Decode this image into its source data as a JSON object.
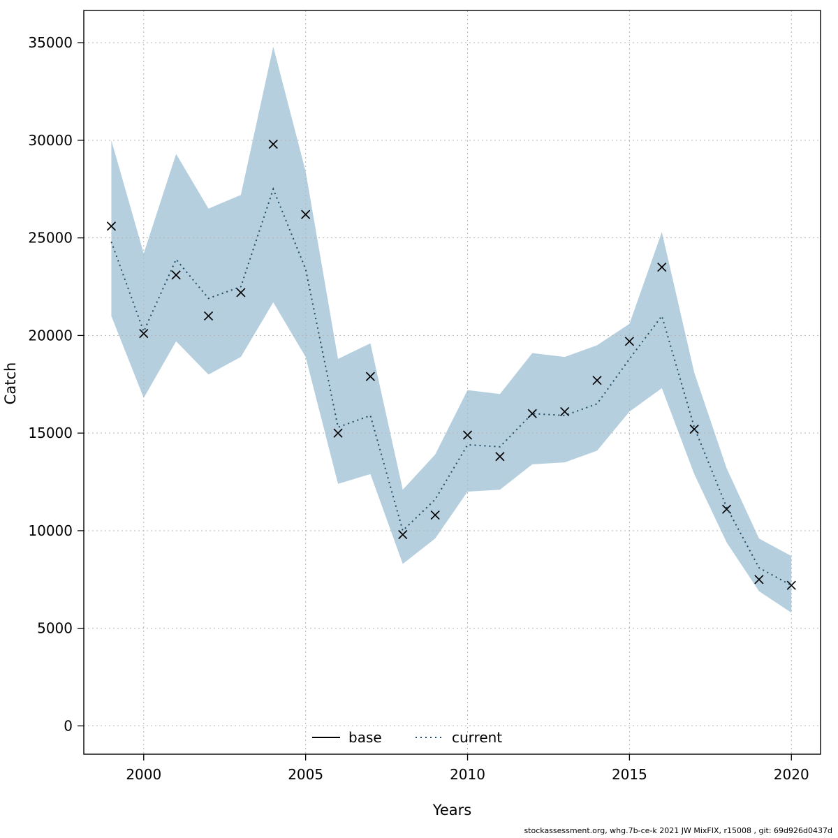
{
  "chart_data": {
    "type": "line",
    "title": "",
    "xlabel": "Years",
    "ylabel": "Catch",
    "xlim": [
      1998.15,
      2020.9
    ],
    "ylim": [
      -1450,
      36650
    ],
    "x_ticks": [
      2000,
      2005,
      2010,
      2015,
      2020
    ],
    "y_ticks": [
      0,
      5000,
      10000,
      15000,
      20000,
      25000,
      30000,
      35000
    ],
    "grid": true,
    "years": [
      1999,
      2000,
      2001,
      2002,
      2003,
      2004,
      2005,
      2006,
      2007,
      2008,
      2009,
      2010,
      2011,
      2012,
      2013,
      2014,
      2015,
      2016,
      2017,
      2018,
      2019,
      2020
    ],
    "series": [
      {
        "name": "catch-observations",
        "type": "points",
        "marker": "x",
        "color": "#000000",
        "values": [
          25600,
          20100,
          23100,
          21000,
          22200,
          29800,
          26200,
          15000,
          17900,
          9800,
          10800,
          14900,
          13800,
          16000,
          16100,
          17700,
          19700,
          23500,
          15200,
          11100,
          7500,
          7200
        ]
      },
      {
        "name": "current",
        "type": "line",
        "linestyle": "dotted",
        "color": "#1e4a62",
        "values": [
          24800,
          20200,
          23900,
          21900,
          22500,
          27500,
          23400,
          15300,
          15900,
          10000,
          11600,
          14400,
          14300,
          16000,
          15900,
          16500,
          18800,
          21000,
          15300,
          11200,
          8100,
          7200
        ]
      }
    ],
    "band": {
      "name": "confidence-band",
      "color": "#b5cfdf",
      "lower": [
        21000,
        16800,
        19700,
        18000,
        18900,
        21700,
        18900,
        12400,
        12900,
        8300,
        9600,
        12000,
        12100,
        13400,
        13500,
        14100,
        16100,
        17300,
        12900,
        9400,
        6900,
        5800
      ],
      "upper": [
        30000,
        24200,
        29300,
        26500,
        27200,
        34800,
        28400,
        18800,
        19600,
        12100,
        13900,
        17200,
        17000,
        19100,
        18900,
        19500,
        20600,
        25300,
        18100,
        13200,
        9600,
        8700
      ]
    },
    "legend": [
      {
        "label": "base",
        "style": "solid",
        "color": "#000000"
      },
      {
        "label": "current",
        "style": "dotted",
        "color": "#1e4a62"
      }
    ],
    "legend_position": "bottom-center-inside",
    "footer": "stockassessment.org, whg.7b-ce-k 2021 JW MixFIX, r15008 , git: 69d926d0437d"
  }
}
